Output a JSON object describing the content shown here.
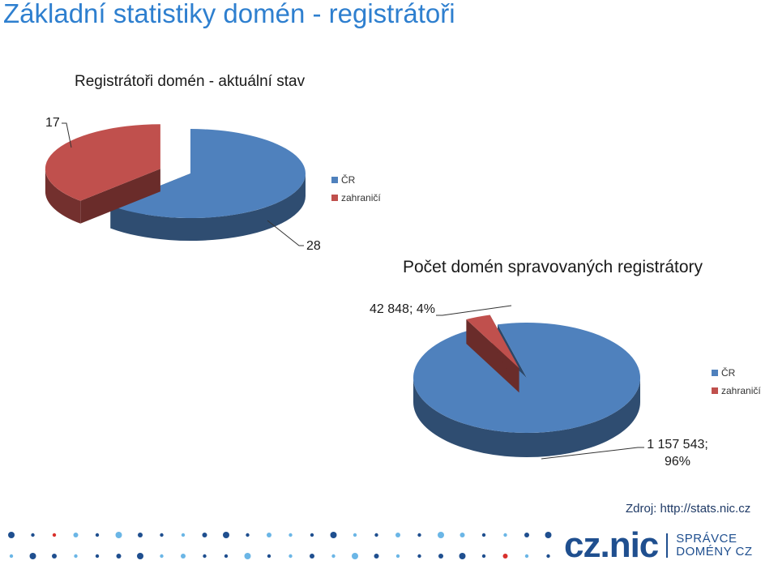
{
  "page": {
    "title": "Základní statistiky domén - registrátoři"
  },
  "chart_data": [
    {
      "type": "pie",
      "title": "Registrátoři domén - aktuální stav",
      "categories": [
        "ČR",
        "zahraničí"
      ],
      "values": [
        28,
        17
      ],
      "labels": [
        "28",
        "17"
      ],
      "colors": [
        "#4f81bd",
        "#c0504d"
      ],
      "legend": "right",
      "exploded": true
    },
    {
      "type": "pie",
      "title": "Počet domén spravovaných registrátory",
      "categories": [
        "ČR",
        "zahraničí"
      ],
      "values": [
        1157543,
        42848
      ],
      "labels": [
        "1 157 543; 96%",
        "42 848; 4%"
      ],
      "colors": [
        "#4f81bd",
        "#c0504d"
      ],
      "legend": "right",
      "exploded": true
    }
  ],
  "footer": {
    "source": "Zdroj: http://stats.nic.cz",
    "logo_text": "cz.nic",
    "logo_tagline_1": "SPRÁVCE",
    "logo_tagline_2": "DOMÉNY CZ"
  }
}
